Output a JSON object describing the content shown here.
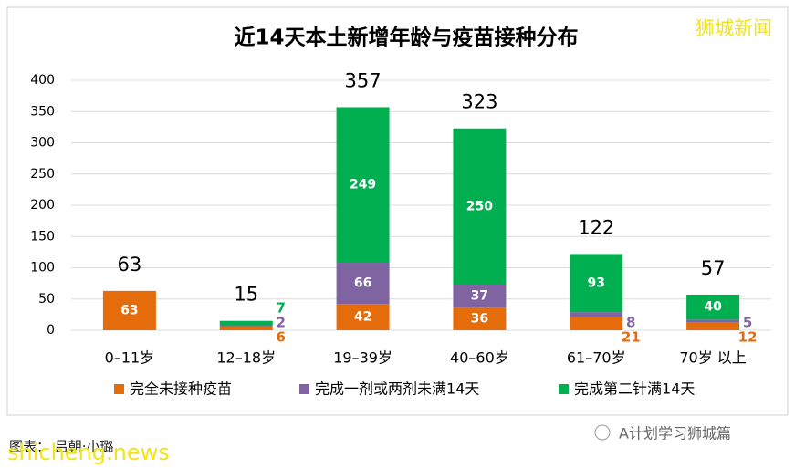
{
  "chart_data": {
    "type": "stacked_bar",
    "title": "近14天本土新增年龄与疫苗接种分布",
    "categories": [
      "0–11岁",
      "12–18岁",
      "19–39岁",
      "40–60岁",
      "61–70岁",
      "70岁 以上"
    ],
    "series": [
      {
        "name": "完全未接种疫苗",
        "color": "#e46c0a",
        "values": [
          63,
          6,
          42,
          36,
          21,
          12
        ]
      },
      {
        "name": "完成一剂或两剂未满14天",
        "color": "#8064a2",
        "values": [
          null,
          2,
          66,
          37,
          8,
          5
        ]
      },
      {
        "name": "完成第二针满14天",
        "color": "#00b050",
        "values": [
          null,
          7,
          249,
          250,
          93,
          40
        ]
      }
    ],
    "totals": [
      63,
      15,
      357,
      323,
      122,
      57
    ],
    "ylim": [
      0,
      400
    ],
    "yticks": [
      0,
      50,
      100,
      150,
      200,
      250,
      300,
      350,
      400
    ],
    "grid": true,
    "legend": "bottom",
    "source": "图表： 吕朝·小璐",
    "watermarks": [
      "狮城新闻",
      "A计划学习狮城篇",
      "shicheng.news"
    ]
  }
}
